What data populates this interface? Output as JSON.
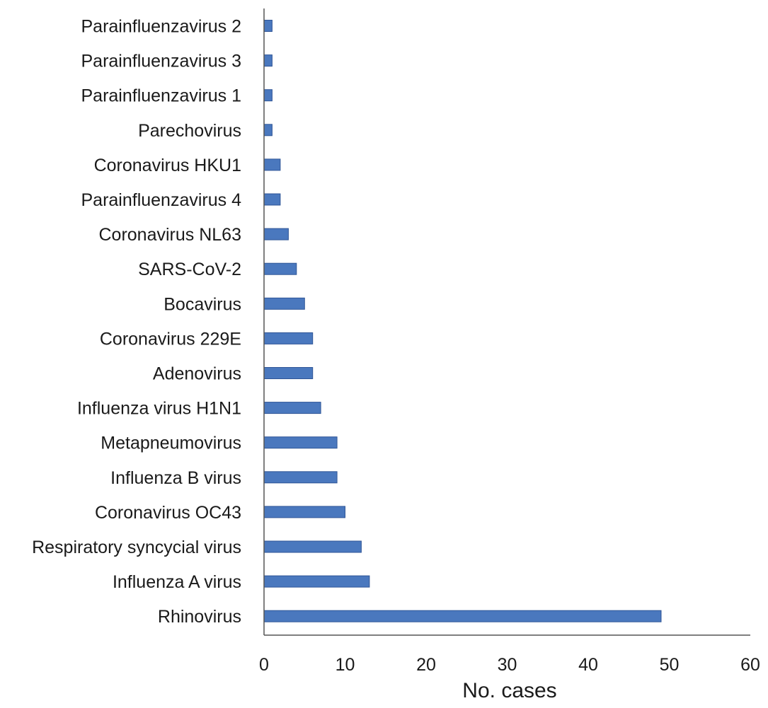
{
  "chart_data": {
    "type": "bar",
    "orientation": "horizontal",
    "title": "",
    "xlabel": "No. cases",
    "ylabel": "",
    "xlim": [
      0,
      60
    ],
    "x_ticks": [
      "0",
      "10",
      "20",
      "30",
      "40",
      "50",
      "60"
    ],
    "grid": false,
    "legend": "none",
    "bar_color": "#4a78be",
    "bar_edge_color": "#2f5597",
    "categories": [
      "Parainfluenzavirus 2",
      "Parainfluenzavirus 3",
      "Parainfluenzavirus 1",
      "Parechovirus",
      "Coronavirus HKU1",
      "Parainfluenzavirus 4",
      "Coronavirus NL63",
      "SARS-CoV-2",
      "Bocavirus",
      "Coronavirus 229E",
      "Adenovirus",
      "Influenza virus H1N1",
      "Metapneumovirus",
      "Influenza B virus",
      "Coronavirus OC43",
      "Respiratory syncycial virus",
      "Influenza A virus",
      "Rhinovirus"
    ],
    "values": [
      1,
      1,
      1,
      1,
      2,
      2,
      3,
      4,
      5,
      6,
      6,
      7,
      9,
      9,
      10,
      12,
      13,
      49
    ]
  }
}
